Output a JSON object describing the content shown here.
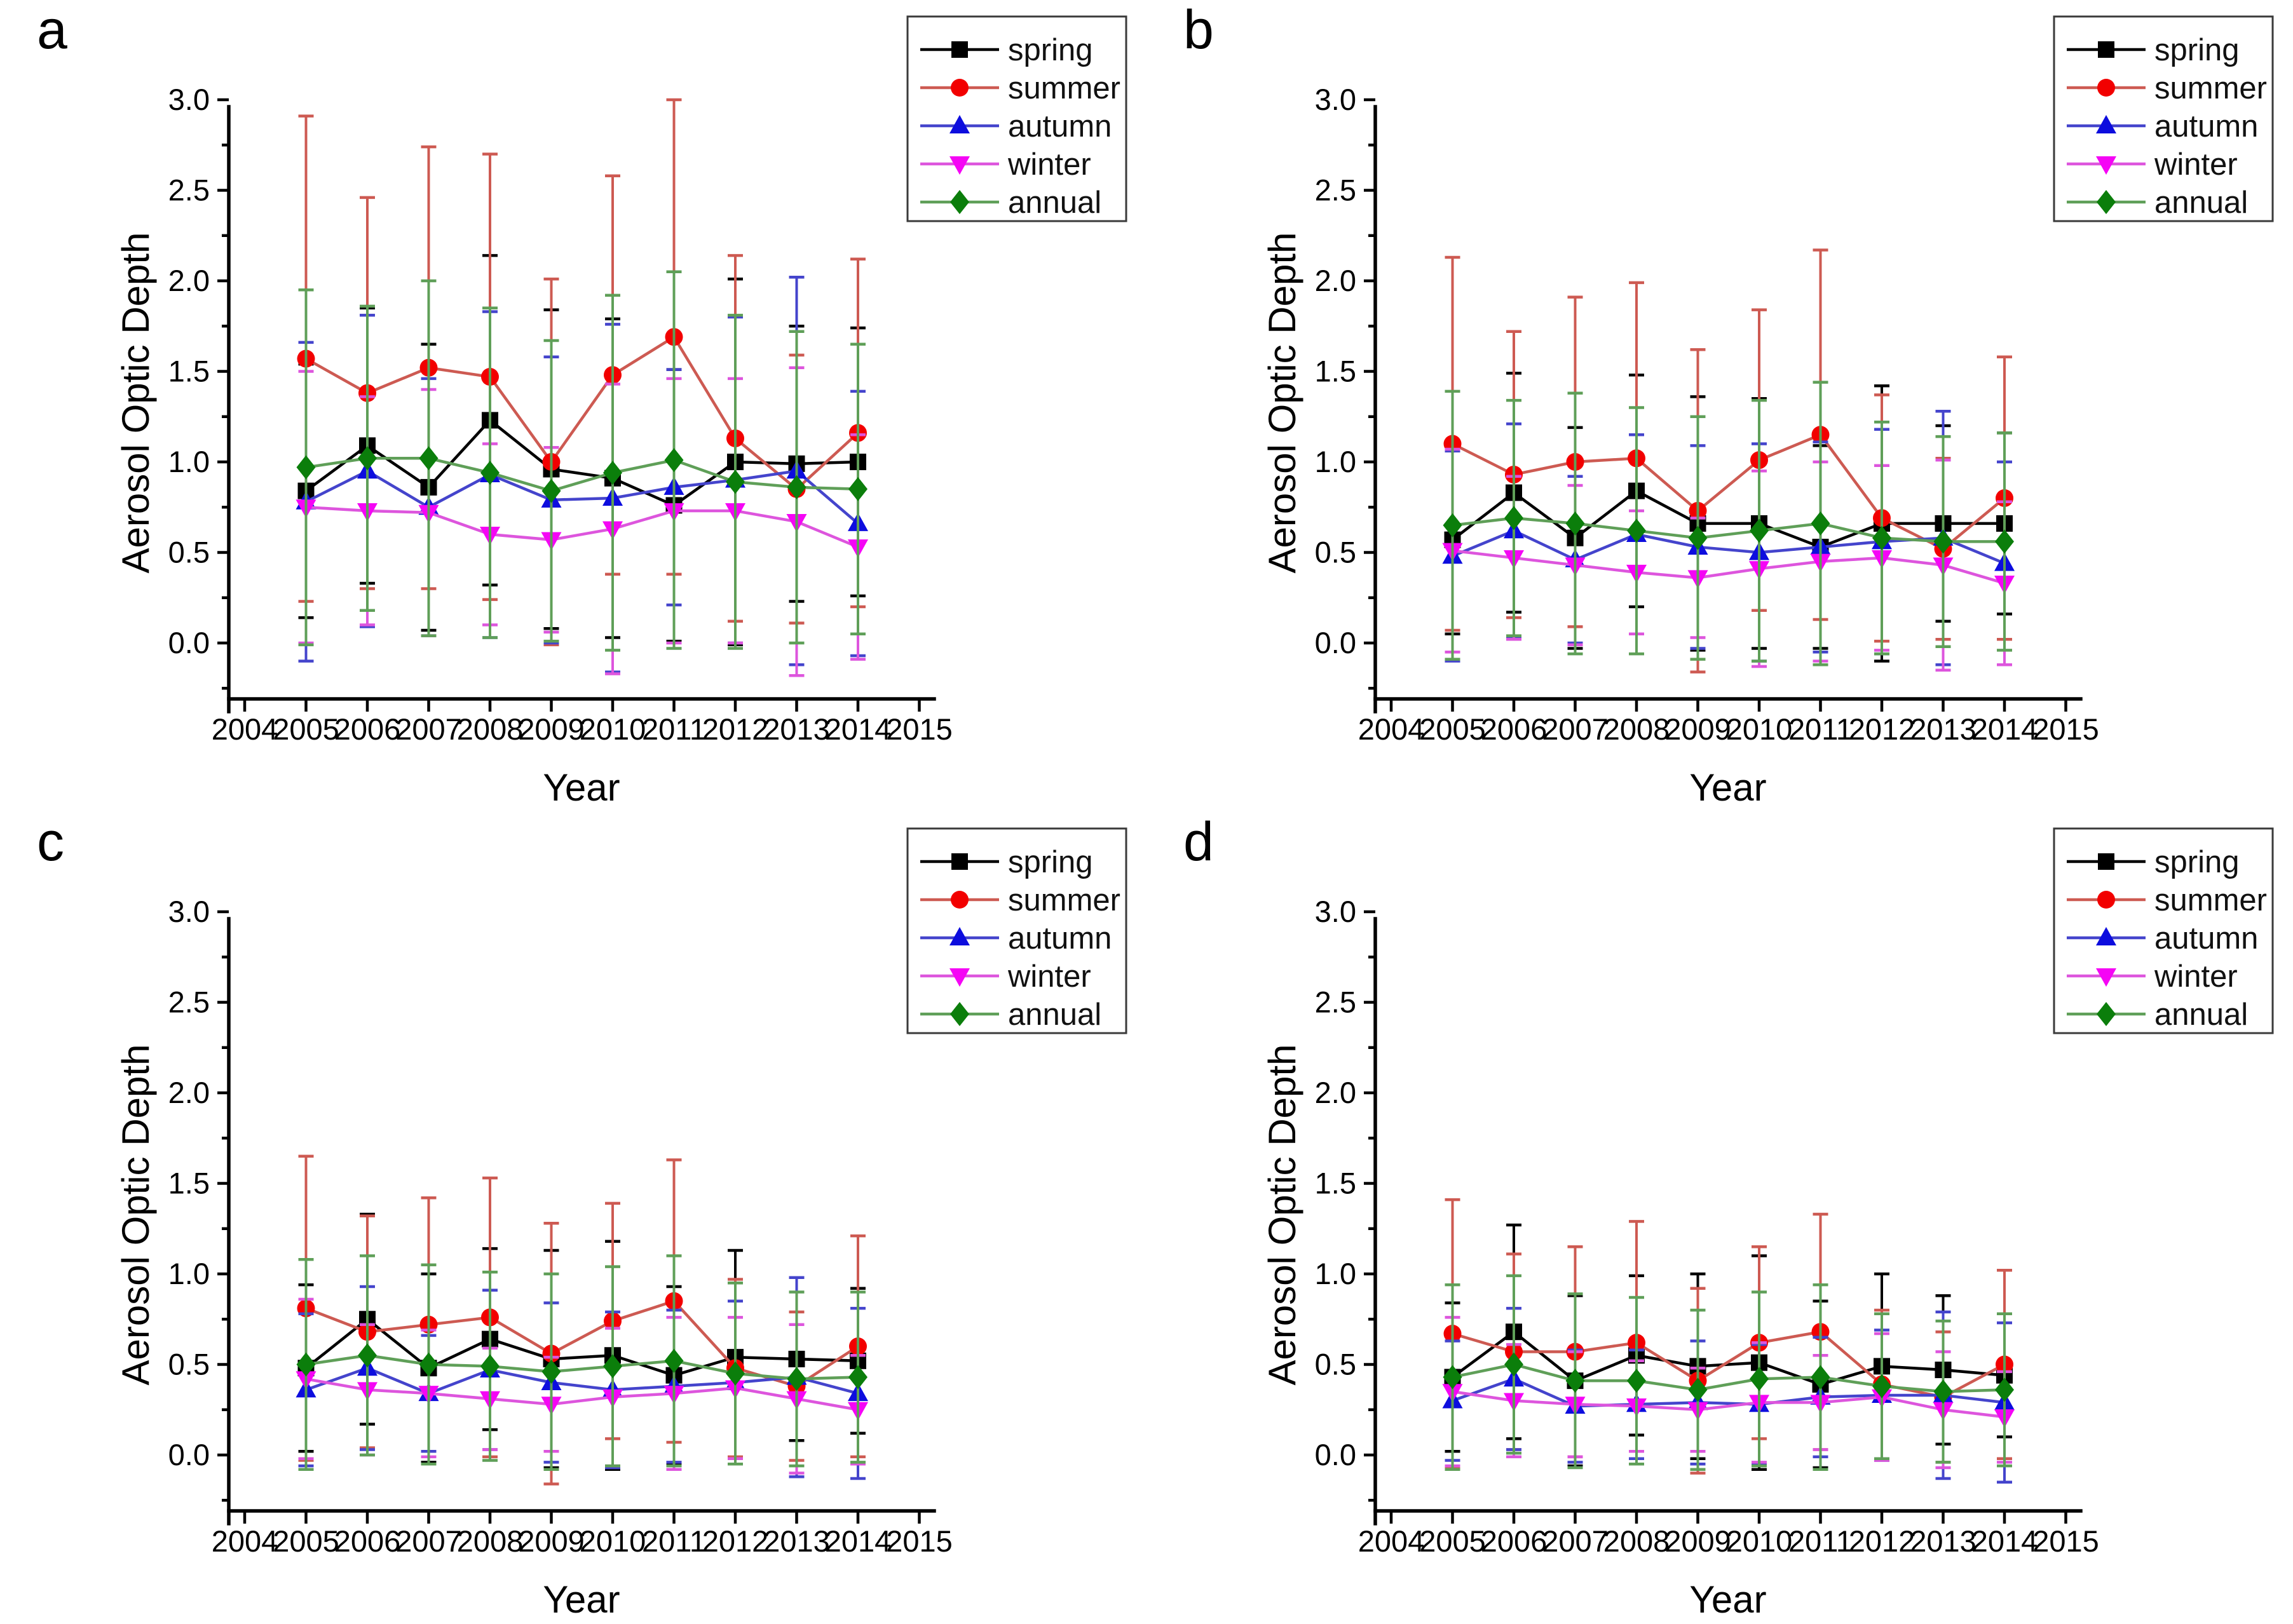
{
  "figure": {
    "background": "#ffffff",
    "axes": {
      "xlabel": "Year",
      "ylabel": "Aerosol Optic Depth",
      "x_ticks": [
        {
          "value": 2004,
          "label": "2004"
        },
        {
          "value": 2005,
          "label": "2005"
        },
        {
          "value": 2006,
          "label": "2006"
        },
        {
          "value": 2007,
          "label": "2007"
        },
        {
          "value": 2008,
          "label": "2008"
        },
        {
          "value": 2009,
          "label": "2009"
        },
        {
          "value": 2010,
          "label": "2010"
        },
        {
          "value": 2011,
          "label": "2011"
        },
        {
          "value": 2012,
          "label": "2012"
        },
        {
          "value": 2013,
          "label": "2013"
        },
        {
          "value": 2014,
          "label": "2014"
        },
        {
          "value": 2015,
          "label": "2015"
        }
      ],
      "y_ticks": [
        {
          "value": 0.0,
          "label": "0.0"
        },
        {
          "value": 0.5,
          "label": "0.5"
        },
        {
          "value": 1.0,
          "label": "1.0"
        },
        {
          "value": 1.5,
          "label": "1.5"
        },
        {
          "value": 2.0,
          "label": "2.0"
        },
        {
          "value": 2.5,
          "label": "2.5"
        },
        {
          "value": 3.0,
          "label": "3.0"
        }
      ],
      "y_minor_ticks": [
        -0.25,
        0.25,
        0.75,
        1.25,
        1.75,
        2.25,
        2.75
      ],
      "xlim": [
        2003.6,
        2015.4
      ],
      "ylim": [
        -0.31,
        3.02
      ],
      "grid": false
    },
    "legend": {
      "position": "top-right",
      "entries": [
        {
          "label": "spring",
          "marker": "square",
          "line_color": "#000000",
          "marker_color": "#000000"
        },
        {
          "label": "summer",
          "marker": "circle",
          "line_color": "#cd5a52",
          "marker_color": "#f20000"
        },
        {
          "label": "autumn",
          "marker": "triangle-up",
          "line_color": "#4444cc",
          "marker_color": "#0d0dde"
        },
        {
          "label": "winter",
          "marker": "triangle-down",
          "line_color": "#dd55dd",
          "marker_color": "#f505f5"
        },
        {
          "label": "annual",
          "marker": "diamond",
          "line_color": "#5f9f58",
          "marker_color": "#0b7e0b"
        }
      ]
    }
  },
  "chart_data": [
    {
      "letter": "a",
      "type": "line",
      "x": [
        2005,
        2006,
        2007,
        2008,
        2009,
        2010,
        2011,
        2012,
        2013,
        2014
      ],
      "xlabel": "Year",
      "ylabel": "Aerosol Optic Depth",
      "series": [
        {
          "name": "spring",
          "values": [
            0.84,
            1.09,
            0.86,
            1.23,
            0.96,
            0.91,
            0.76,
            1.0,
            0.99,
            1.0
          ],
          "errors": [
            0.7,
            0.76,
            0.79,
            0.91,
            0.88,
            0.88,
            0.75,
            1.01,
            0.76,
            0.74
          ]
        },
        {
          "name": "summer",
          "values": [
            1.57,
            1.38,
            1.52,
            1.47,
            1.0,
            1.48,
            1.69,
            1.13,
            0.85,
            1.16
          ],
          "errors": [
            1.34,
            1.08,
            1.22,
            1.23,
            1.01,
            1.1,
            1.31,
            1.01,
            0.74,
            0.96
          ]
        },
        {
          "name": "autumn",
          "values": [
            0.78,
            0.95,
            0.75,
            0.93,
            0.79,
            0.8,
            0.86,
            0.9,
            0.95,
            0.66
          ],
          "errors": [
            0.88,
            0.86,
            0.71,
            0.9,
            0.79,
            0.96,
            0.65,
            0.9,
            1.07,
            0.73
          ]
        },
        {
          "name": "winter",
          "values": [
            0.75,
            0.73,
            0.72,
            0.6,
            0.57,
            0.63,
            0.73,
            0.73,
            0.67,
            0.53
          ],
          "errors": [
            0.75,
            0.63,
            0.68,
            0.5,
            0.51,
            0.8,
            0.73,
            0.73,
            0.85,
            0.62
          ]
        },
        {
          "name": "annual",
          "values": [
            0.97,
            1.02,
            1.02,
            0.94,
            0.84,
            0.94,
            1.01,
            0.89,
            0.86,
            0.85
          ],
          "errors": [
            0.98,
            0.84,
            0.98,
            0.91,
            0.83,
            0.98,
            1.04,
            0.92,
            0.86,
            0.8
          ]
        }
      ]
    },
    {
      "letter": "b",
      "type": "line",
      "x": [
        2005,
        2006,
        2007,
        2008,
        2009,
        2010,
        2011,
        2012,
        2013,
        2014
      ],
      "xlabel": "Year",
      "ylabel": "Aerosol Optic Depth",
      "series": [
        {
          "name": "spring",
          "values": [
            0.57,
            0.83,
            0.58,
            0.84,
            0.66,
            0.66,
            0.53,
            0.66,
            0.66,
            0.66
          ],
          "errors": [
            0.52,
            0.66,
            0.61,
            0.64,
            0.7,
            0.69,
            0.56,
            0.76,
            0.54,
            0.5
          ]
        },
        {
          "name": "summer",
          "values": [
            1.1,
            0.93,
            1.0,
            1.02,
            0.73,
            1.01,
            1.15,
            0.69,
            0.52,
            0.8
          ],
          "errors": [
            1.03,
            0.79,
            0.91,
            0.97,
            0.89,
            0.83,
            1.02,
            0.68,
            0.5,
            0.78
          ]
        },
        {
          "name": "autumn",
          "values": [
            0.48,
            0.62,
            0.46,
            0.6,
            0.53,
            0.5,
            0.53,
            0.56,
            0.58,
            0.44
          ],
          "errors": [
            0.58,
            0.59,
            0.46,
            0.55,
            0.56,
            0.6,
            0.58,
            0.62,
            0.7,
            0.56
          ]
        },
        {
          "name": "winter",
          "values": [
            0.51,
            0.47,
            0.43,
            0.39,
            0.36,
            0.41,
            0.45,
            0.47,
            0.43,
            0.33
          ],
          "errors": [
            0.56,
            0.45,
            0.44,
            0.34,
            0.33,
            0.54,
            0.55,
            0.51,
            0.58,
            0.45
          ]
        },
        {
          "name": "annual",
          "values": [
            0.65,
            0.69,
            0.66,
            0.62,
            0.58,
            0.62,
            0.66,
            0.58,
            0.56,
            0.56
          ],
          "errors": [
            0.74,
            0.65,
            0.72,
            0.68,
            0.67,
            0.72,
            0.78,
            0.64,
            0.58,
            0.6
          ]
        }
      ]
    },
    {
      "letter": "c",
      "type": "line",
      "x": [
        2005,
        2006,
        2007,
        2008,
        2009,
        2010,
        2011,
        2012,
        2013,
        2014
      ],
      "xlabel": "Year",
      "ylabel": "Aerosol Optic Depth",
      "series": [
        {
          "name": "spring",
          "values": [
            0.48,
            0.75,
            0.48,
            0.64,
            0.53,
            0.55,
            0.44,
            0.54,
            0.53,
            0.52
          ],
          "errors": [
            0.46,
            0.58,
            0.52,
            0.5,
            0.6,
            0.63,
            0.49,
            0.59,
            0.45,
            0.4
          ]
        },
        {
          "name": "summer",
          "values": [
            0.81,
            0.68,
            0.72,
            0.76,
            0.56,
            0.74,
            0.85,
            0.48,
            0.38,
            0.6
          ],
          "errors": [
            0.84,
            0.64,
            0.7,
            0.77,
            0.72,
            0.65,
            0.78,
            0.49,
            0.41,
            0.61
          ]
        },
        {
          "name": "autumn",
          "values": [
            0.36,
            0.48,
            0.34,
            0.47,
            0.4,
            0.36,
            0.38,
            0.4,
            0.43,
            0.34
          ],
          "errors": [
            0.42,
            0.45,
            0.32,
            0.44,
            0.44,
            0.43,
            0.42,
            0.45,
            0.55,
            0.47
          ]
        },
        {
          "name": "winter",
          "values": [
            0.42,
            0.36,
            0.34,
            0.31,
            0.28,
            0.32,
            0.34,
            0.37,
            0.31,
            0.25
          ],
          "errors": [
            0.44,
            0.36,
            0.35,
            0.28,
            0.26,
            0.38,
            0.42,
            0.39,
            0.41,
            0.3
          ]
        },
        {
          "name": "annual",
          "values": [
            0.5,
            0.55,
            0.5,
            0.49,
            0.46,
            0.49,
            0.52,
            0.45,
            0.42,
            0.43
          ],
          "errors": [
            0.58,
            0.55,
            0.55,
            0.52,
            0.54,
            0.55,
            0.58,
            0.5,
            0.48,
            0.47
          ]
        }
      ]
    },
    {
      "letter": "d",
      "type": "line",
      "x": [
        2005,
        2006,
        2007,
        2008,
        2009,
        2010,
        2011,
        2012,
        2013,
        2014
      ],
      "xlabel": "Year",
      "ylabel": "Aerosol Optic Depth",
      "series": [
        {
          "name": "spring",
          "values": [
            0.43,
            0.68,
            0.41,
            0.55,
            0.49,
            0.51,
            0.39,
            0.49,
            0.47,
            0.44
          ],
          "errors": [
            0.41,
            0.59,
            0.47,
            0.44,
            0.51,
            0.59,
            0.46,
            0.51,
            0.41,
            0.34
          ]
        },
        {
          "name": "summer",
          "values": [
            0.67,
            0.57,
            0.57,
            0.62,
            0.41,
            0.62,
            0.68,
            0.39,
            0.32,
            0.5
          ],
          "errors": [
            0.74,
            0.54,
            0.58,
            0.67,
            0.51,
            0.53,
            0.65,
            0.41,
            0.36,
            0.52
          ]
        },
        {
          "name": "autumn",
          "values": [
            0.3,
            0.42,
            0.27,
            0.28,
            0.29,
            0.28,
            0.32,
            0.33,
            0.33,
            0.29
          ],
          "errors": [
            0.33,
            0.39,
            0.31,
            0.3,
            0.34,
            0.33,
            0.33,
            0.36,
            0.46,
            0.44
          ]
        },
        {
          "name": "winter",
          "values": [
            0.35,
            0.3,
            0.28,
            0.27,
            0.25,
            0.29,
            0.29,
            0.32,
            0.25,
            0.21
          ],
          "errors": [
            0.41,
            0.31,
            0.29,
            0.25,
            0.23,
            0.33,
            0.26,
            0.35,
            0.32,
            0.25
          ]
        },
        {
          "name": "annual",
          "values": [
            0.43,
            0.5,
            0.41,
            0.41,
            0.36,
            0.42,
            0.43,
            0.38,
            0.35,
            0.36
          ],
          "errors": [
            0.51,
            0.49,
            0.48,
            0.46,
            0.44,
            0.48,
            0.51,
            0.4,
            0.39,
            0.42
          ]
        }
      ]
    }
  ]
}
